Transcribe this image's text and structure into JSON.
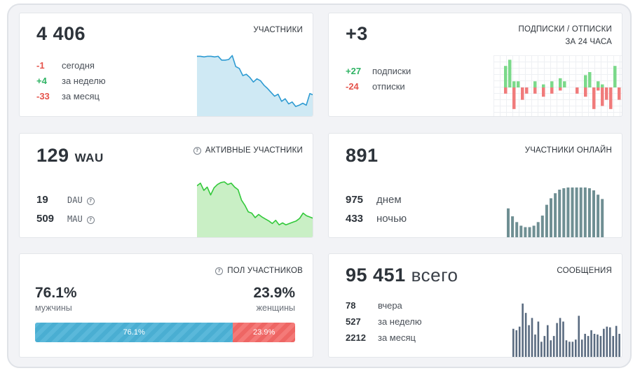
{
  "members": {
    "title": "УЧАСТНИКИ",
    "total": "4 406",
    "rows": [
      {
        "value": "-1",
        "label": "сегодня"
      },
      {
        "value": "+4",
        "label": "за неделю"
      },
      {
        "value": "-33",
        "label": "за месяц"
      }
    ],
    "trend": [
      92,
      92,
      91,
      92,
      92,
      91,
      92,
      86,
      86,
      87,
      93,
      76,
      73,
      62,
      64,
      59,
      52,
      57,
      54,
      47,
      42,
      36,
      30,
      33,
      22,
      26,
      18,
      21,
      14,
      16,
      19,
      16,
      34,
      32
    ]
  },
  "subs": {
    "title_line1": "ПОДПИСКИ / ОТПИСКИ",
    "title_line2": "ЗА 24 ЧАСА",
    "total": "+3",
    "rows": [
      {
        "value": "+27",
        "label": "подписки"
      },
      {
        "value": "-24",
        "label": "отписки"
      }
    ],
    "ups": [
      0,
      0,
      7,
      9,
      2,
      2,
      0,
      0,
      0,
      2,
      0,
      1,
      0,
      2,
      0,
      3,
      2,
      0,
      0,
      0,
      0,
      4,
      5,
      0,
      2,
      1,
      0,
      0,
      7,
      0
    ],
    "downs": [
      0,
      0,
      2,
      0,
      7,
      0,
      4,
      2,
      0,
      2,
      0,
      3,
      0,
      2,
      0,
      1,
      0,
      0,
      0,
      2,
      0,
      3,
      0,
      7,
      1,
      6,
      4,
      7,
      0,
      4
    ]
  },
  "active": {
    "title": "АКТИВНЫЕ УЧАСТНИКИ",
    "total": "129",
    "unit": "WAU",
    "rows": [
      {
        "value": "19",
        "label": "DAU"
      },
      {
        "value": "509",
        "label": "MAU"
      }
    ],
    "trend": [
      78,
      82,
      71,
      76,
      64,
      75,
      80,
      83,
      84,
      80,
      82,
      76,
      72,
      56,
      48,
      38,
      36,
      29,
      34,
      30,
      27,
      24,
      20,
      25,
      18,
      21,
      18,
      20,
      22,
      24,
      28,
      36,
      32,
      30,
      28
    ]
  },
  "online": {
    "title": "УЧАСТНИКИ ОНЛАЙН",
    "total": "891",
    "rows": [
      {
        "value": "975",
        "label": "днем"
      },
      {
        "value": "433",
        "label": "ночью"
      }
    ],
    "bars": [
      41,
      30,
      22,
      17,
      15,
      15,
      17,
      22,
      31,
      46,
      55,
      62,
      67,
      69,
      70,
      70,
      70,
      70,
      70,
      69,
      66,
      60,
      54
    ]
  },
  "gender": {
    "title": "ПОЛ УЧАСТНИКОВ",
    "male": {
      "value": "76.1%",
      "label": "мужчины",
      "fraction": 0.761
    },
    "female": {
      "value": "23.9%",
      "label": "женщины",
      "fraction": 0.239
    },
    "bar_male": "76.1%",
    "bar_female": "23.9%"
  },
  "messages": {
    "title": "СООБЩЕНИЯ",
    "total": "95 451",
    "unit": "всего",
    "rows": [
      {
        "value": "78",
        "label": "вчера"
      },
      {
        "value": "527",
        "label": "за неделю"
      },
      {
        "value": "2212",
        "label": "за месяц"
      }
    ],
    "bars": [
      40,
      38,
      43,
      75,
      62,
      45,
      55,
      32,
      50,
      22,
      30,
      45,
      24,
      30,
      48,
      55,
      50,
      24,
      22,
      22,
      25,
      58,
      25,
      33,
      30,
      38,
      33,
      32,
      30,
      40,
      43,
      42,
      30,
      44,
      33
    ]
  },
  "colors": {
    "red": "#e5534b",
    "green": "#2fb364",
    "blue_area": "#cfe9f4",
    "blue_line": "#2e9bd2",
    "green_area": "#c9efc5",
    "green_line": "#33c93b",
    "slate_bar": "#6f8f93",
    "navy_bar": "#5a6b80"
  }
}
